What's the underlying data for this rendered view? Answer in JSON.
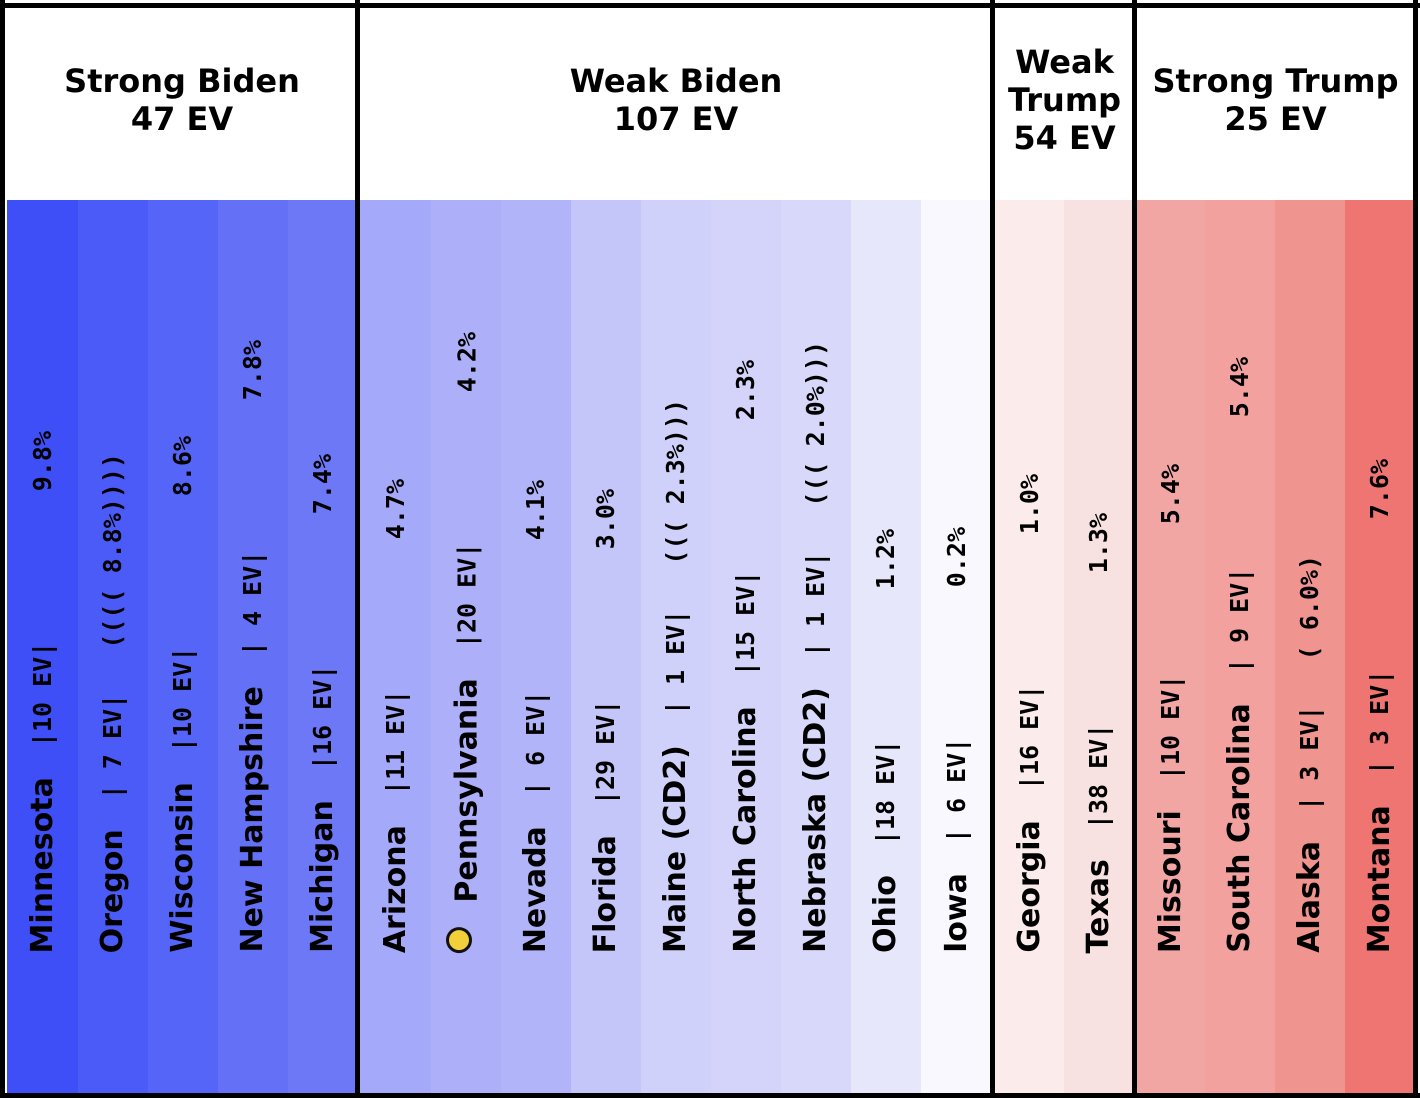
{
  "groups": [
    {
      "title": "Strong Biden",
      "ev": "47 EV",
      "lines": [
        "Strong Biden",
        "47 EV"
      ]
    },
    {
      "title": "Weak Biden",
      "ev": "107 EV",
      "lines": [
        "Weak Biden",
        "107 EV"
      ]
    },
    {
      "title": "Weak Trump",
      "ev": "54 EV",
      "lines": [
        "Weak",
        "Trump",
        "54 EV"
      ]
    },
    {
      "title": "Strong Trump",
      "ev": "25 EV",
      "lines": [
        "Strong Trump",
        "25 EV"
      ]
    }
  ],
  "states": [
    {
      "name": "Minnesota",
      "ev": "10",
      "margin": "9.8%",
      "paren_level": 0,
      "color": "#3f4ff7",
      "group": 0,
      "marked": false
    },
    {
      "name": "Oregon",
      "ev": "7",
      "margin": "8.8%",
      "paren_level": 4,
      "color": "#4b5bf8",
      "group": 0,
      "marked": false
    },
    {
      "name": "Wisconsin",
      "ev": "10",
      "margin": "8.6%",
      "paren_level": 0,
      "color": "#5565f8",
      "group": 0,
      "marked": false
    },
    {
      "name": "New Hampshire",
      "ev": "4",
      "margin": "7.8%",
      "paren_level": 0,
      "color": "#6471f7",
      "group": 0,
      "marked": false
    },
    {
      "name": "Michigan",
      "ev": "16",
      "margin": "7.4%",
      "paren_level": 0,
      "color": "#6c78f6",
      "group": 0,
      "marked": false
    },
    {
      "name": "Arizona",
      "ev": "11",
      "margin": "4.7%",
      "paren_level": 0,
      "color": "#a5a9f9",
      "group": 1,
      "marked": false
    },
    {
      "name": "Pennsylvania",
      "ev": "20",
      "margin": "4.2%",
      "paren_level": 0,
      "color": "#adb0f9",
      "group": 1,
      "marked": true
    },
    {
      "name": "Nevada",
      "ev": "6",
      "margin": "4.1%",
      "paren_level": 0,
      "color": "#b2b4f9",
      "group": 1,
      "marked": false
    },
    {
      "name": "Florida",
      "ev": "29",
      "margin": "3.0%",
      "paren_level": 0,
      "color": "#c4c5f9",
      "group": 1,
      "marked": false
    },
    {
      "name": "Maine (CD2)",
      "ev": "1",
      "margin": "2.3%",
      "paren_level": 3,
      "color": "#d0d1fa",
      "group": 1,
      "marked": false
    },
    {
      "name": "North Carolina",
      "ev": "15",
      "margin": "2.3%",
      "paren_level": 0,
      "color": "#d4d4fa",
      "group": 1,
      "marked": false
    },
    {
      "name": "Nebraska (CD2)",
      "ev": "1",
      "margin": "2.0%",
      "paren_level": 3,
      "color": "#d8d8fb",
      "group": 1,
      "marked": false
    },
    {
      "name": "Ohio",
      "ev": "18",
      "margin": "1.2%",
      "paren_level": 0,
      "color": "#e7e7fc",
      "group": 1,
      "marked": false
    },
    {
      "name": "Iowa",
      "ev": "6",
      "margin": "0.2%",
      "paren_level": 0,
      "color": "#f8f8fe",
      "group": 1,
      "marked": false
    },
    {
      "name": "Georgia",
      "ev": "16",
      "margin": "1.0%",
      "paren_level": 0,
      "color": "#fbebea",
      "group": 2,
      "marked": false
    },
    {
      "name": "Texas",
      "ev": "38",
      "margin": "1.3%",
      "paren_level": 0,
      "color": "#f8e2e1",
      "group": 2,
      "marked": false
    },
    {
      "name": "Missouri",
      "ev": "10",
      "margin": "5.4%",
      "paren_level": 0,
      "color": "#f2a6a3",
      "group": 3,
      "marked": false
    },
    {
      "name": "South Carolina",
      "ev": "9",
      "margin": "5.4%",
      "paren_level": 0,
      "color": "#f2a19e",
      "group": 3,
      "marked": false
    },
    {
      "name": "Alaska",
      "ev": "3",
      "margin": "6.0%",
      "paren_level": 1,
      "color": "#f09490",
      "group": 3,
      "marked": false
    },
    {
      "name": "Montana",
      "ev": "3",
      "margin": "7.6%",
      "paren_level": 0,
      "color": "#ee7571",
      "group": 3,
      "marked": false
    }
  ]
}
